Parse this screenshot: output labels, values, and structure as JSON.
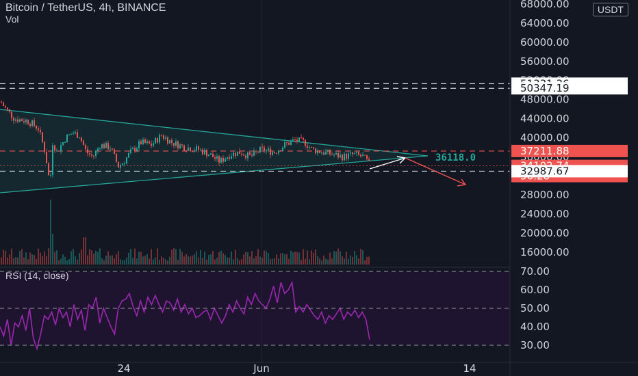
{
  "header": {
    "title": "Bitcoin / TetherUS, 4h, BINANCE",
    "volume_label": "Vol",
    "currency": "USDT"
  },
  "rsi_panel": {
    "label": "RSI (14, close)"
  },
  "colors": {
    "background": "#131722",
    "bull": "#26a69a",
    "bear": "#ef5350",
    "rsi_line": "#9c27b0",
    "pattern_line": "#26a69a",
    "axis_text": "#d1d4dc"
  },
  "chart_data": [
    {
      "type": "candlestick",
      "symbol": "BTC/USDT",
      "timeframe": "4h",
      "exchange": "BINANCE",
      "y_ticks": [
        16000,
        20000,
        24000,
        28000,
        32000,
        36000,
        40000,
        44000,
        48000,
        52000,
        56000,
        60000,
        64000,
        68000
      ],
      "y_tick_labels": [
        "16000.00",
        "20000.00",
        "24000.00",
        "28000.00",
        "32000.00",
        "36000.00",
        "40000.00",
        "44000.00",
        "48000.00",
        "52000.00",
        "56000.00",
        "60000.00",
        "64000.00",
        "68000.00"
      ],
      "x_tick_labels": [
        "24",
        "Jun",
        "14"
      ],
      "price_labels": [
        {
          "label": "51331.36",
          "value": 51331.36,
          "style": "white"
        },
        {
          "label": "50347.19",
          "value": 50347.19,
          "style": "white"
        },
        {
          "label": "37211.88",
          "value": 37211.88,
          "style": "red"
        },
        {
          "label": "34102.74",
          "value": 34102.74,
          "style": "red"
        },
        {
          "label": "56:28",
          "value": 34102.74,
          "style": "red-countdown"
        },
        {
          "label": "32987.67",
          "value": 32987.67,
          "style": "white"
        }
      ],
      "horizontal_levels": [
        51331.36,
        50347.19,
        37211.88,
        32987.67
      ],
      "triangle_label": "36118.0",
      "triangle_label_value": 36118,
      "close_approx": 34102.74,
      "volume_series_note": "volume bars shown in lower area of price pane",
      "grid": false
    },
    {
      "type": "line",
      "name": "RSI (14, close)",
      "y_ticks": [
        30,
        40,
        50,
        60,
        70
      ],
      "y_tick_labels": [
        "30.00",
        "40.00",
        "50.00",
        "60.00",
        "70.00"
      ],
      "levels": [
        70,
        50,
        30
      ],
      "values": [
        40,
        35,
        44,
        30,
        42,
        40,
        46,
        38,
        50,
        34,
        28,
        36,
        46,
        44,
        48,
        41,
        50,
        45,
        48,
        40,
        52,
        44,
        49,
        38,
        52,
        50,
        56,
        42,
        50,
        45,
        40,
        36,
        50,
        54,
        55,
        58,
        51,
        46,
        54,
        48,
        56,
        52,
        57,
        52,
        48,
        54,
        53,
        49,
        55,
        48,
        52,
        47,
        50,
        45,
        46,
        48,
        49,
        44,
        50,
        46,
        42,
        46,
        52,
        48,
        54,
        50,
        47,
        56,
        52,
        58,
        54,
        52,
        50,
        55,
        62,
        53,
        64,
        58,
        60,
        64,
        48,
        51,
        48,
        52,
        49,
        46,
        44,
        48,
        42,
        46,
        44,
        47,
        50,
        44,
        48,
        46,
        49,
        45,
        48,
        44,
        33
      ],
      "last_value": 33
    }
  ]
}
